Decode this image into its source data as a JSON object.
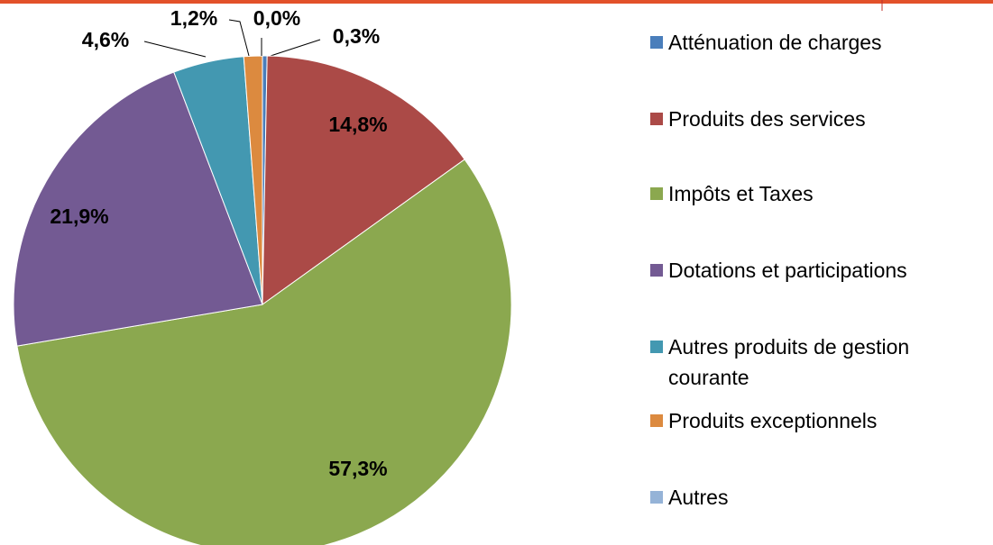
{
  "chart_data": {
    "type": "pie",
    "categories": [
      "Atténuation de charges",
      "Produits des services",
      "Impôts et Taxes",
      "Dotations et participations",
      "Autres produits de gestion courante",
      "Produits exceptionnels",
      "Autres"
    ],
    "values": [
      0.3,
      14.8,
      57.3,
      21.9,
      4.6,
      1.2,
      0.0
    ],
    "value_labels": [
      "0,3%",
      "14,8%",
      "57,3%",
      "21,9%",
      "4,6%",
      "1,2%",
      "0,0%"
    ],
    "colors": [
      "#4a7ebb",
      "#ab4a47",
      "#8ba84f",
      "#735a93",
      "#4398b1",
      "#dc8a3f",
      "#95b3d7"
    ],
    "legend": "right"
  }
}
